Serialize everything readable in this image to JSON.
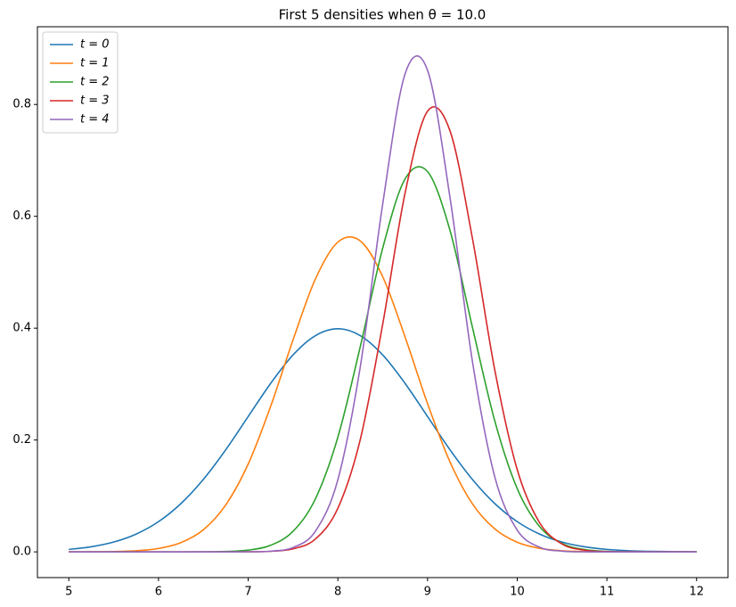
{
  "chart_data": {
    "type": "line",
    "title": "First 5 densities when θ = 10.0",
    "x": [
      5,
      5.25,
      5.5,
      5.75,
      6,
      6.25,
      6.5,
      6.75,
      7,
      7.25,
      7.5,
      7.75,
      8,
      8.25,
      8.5,
      8.75,
      9,
      9.25,
      9.5,
      9.75,
      10,
      10.25,
      10.5,
      10.75,
      11,
      11.25,
      11.5,
      11.75,
      12
    ],
    "series": [
      {
        "name": "t = 0",
        "color": "#1f77b4",
        "values": [
          0.0044,
          0.0091,
          0.0175,
          0.0317,
          0.054,
          0.0863,
          0.1295,
          0.1826,
          0.242,
          0.3011,
          0.3521,
          0.3867,
          0.399,
          0.3867,
          0.3521,
          0.3011,
          0.242,
          0.1826,
          0.1295,
          0.0863,
          0.054,
          0.0317,
          0.0175,
          0.0091,
          0.0044,
          0.002,
          0.0009,
          0.0004,
          0.0001
        ]
      },
      {
        "name": "t = 1",
        "color": "#ff7f0e",
        "values": [
          0,
          0.0001,
          0.0006,
          0.002,
          0.006,
          0.0165,
          0.0395,
          0.084,
          0.157,
          0.26,
          0.379,
          0.488,
          0.554,
          0.556,
          0.492,
          0.384,
          0.265,
          0.161,
          0.086,
          0.041,
          0.0171,
          0.0063,
          0.002,
          0.0006,
          0.0001,
          0,
          0,
          0,
          0
        ]
      },
      {
        "name": "t = 2",
        "color": "#2ca02c",
        "values": [
          0,
          0,
          0,
          0,
          0,
          0,
          0.0001,
          0.0007,
          0.0031,
          0.0117,
          0.0367,
          0.095,
          0.205,
          0.367,
          0.543,
          0.667,
          0.68,
          0.575,
          0.402,
          0.234,
          0.113,
          0.045,
          0.015,
          0.0041,
          0.0009,
          0.0002,
          0,
          0,
          0
        ]
      },
      {
        "name": "t = 3",
        "color": "#d62728",
        "values": [
          0,
          0,
          0,
          0,
          0,
          0,
          0,
          0,
          0.0001,
          0.001,
          0.0054,
          0.023,
          0.078,
          0.201,
          0.407,
          0.642,
          0.788,
          0.753,
          0.561,
          0.325,
          0.147,
          0.052,
          0.014,
          0.003,
          0.0005,
          0.0001,
          0,
          0,
          0
        ]
      },
      {
        "name": "t = 4",
        "color": "#9467bd",
        "values": [
          0,
          0,
          0,
          0,
          0,
          0,
          0,
          0,
          0.0001,
          0.0012,
          0.0077,
          0.037,
          0.129,
          0.331,
          0.622,
          0.855,
          0.861,
          0.634,
          0.341,
          0.134,
          0.039,
          0.0082,
          0.0013,
          0.0001,
          0,
          0,
          0,
          0,
          0
        ]
      }
    ],
    "xlim": [
      4.65,
      12.35
    ],
    "ylim": [
      -0.046,
      0.939
    ],
    "xticks": [
      5,
      6,
      7,
      8,
      9,
      10,
      11,
      12
    ],
    "yticks": [
      {
        "value": 0,
        "label": "0.0"
      },
      0.2,
      0.4,
      0.6,
      0.8
    ],
    "legend": "upper left"
  }
}
